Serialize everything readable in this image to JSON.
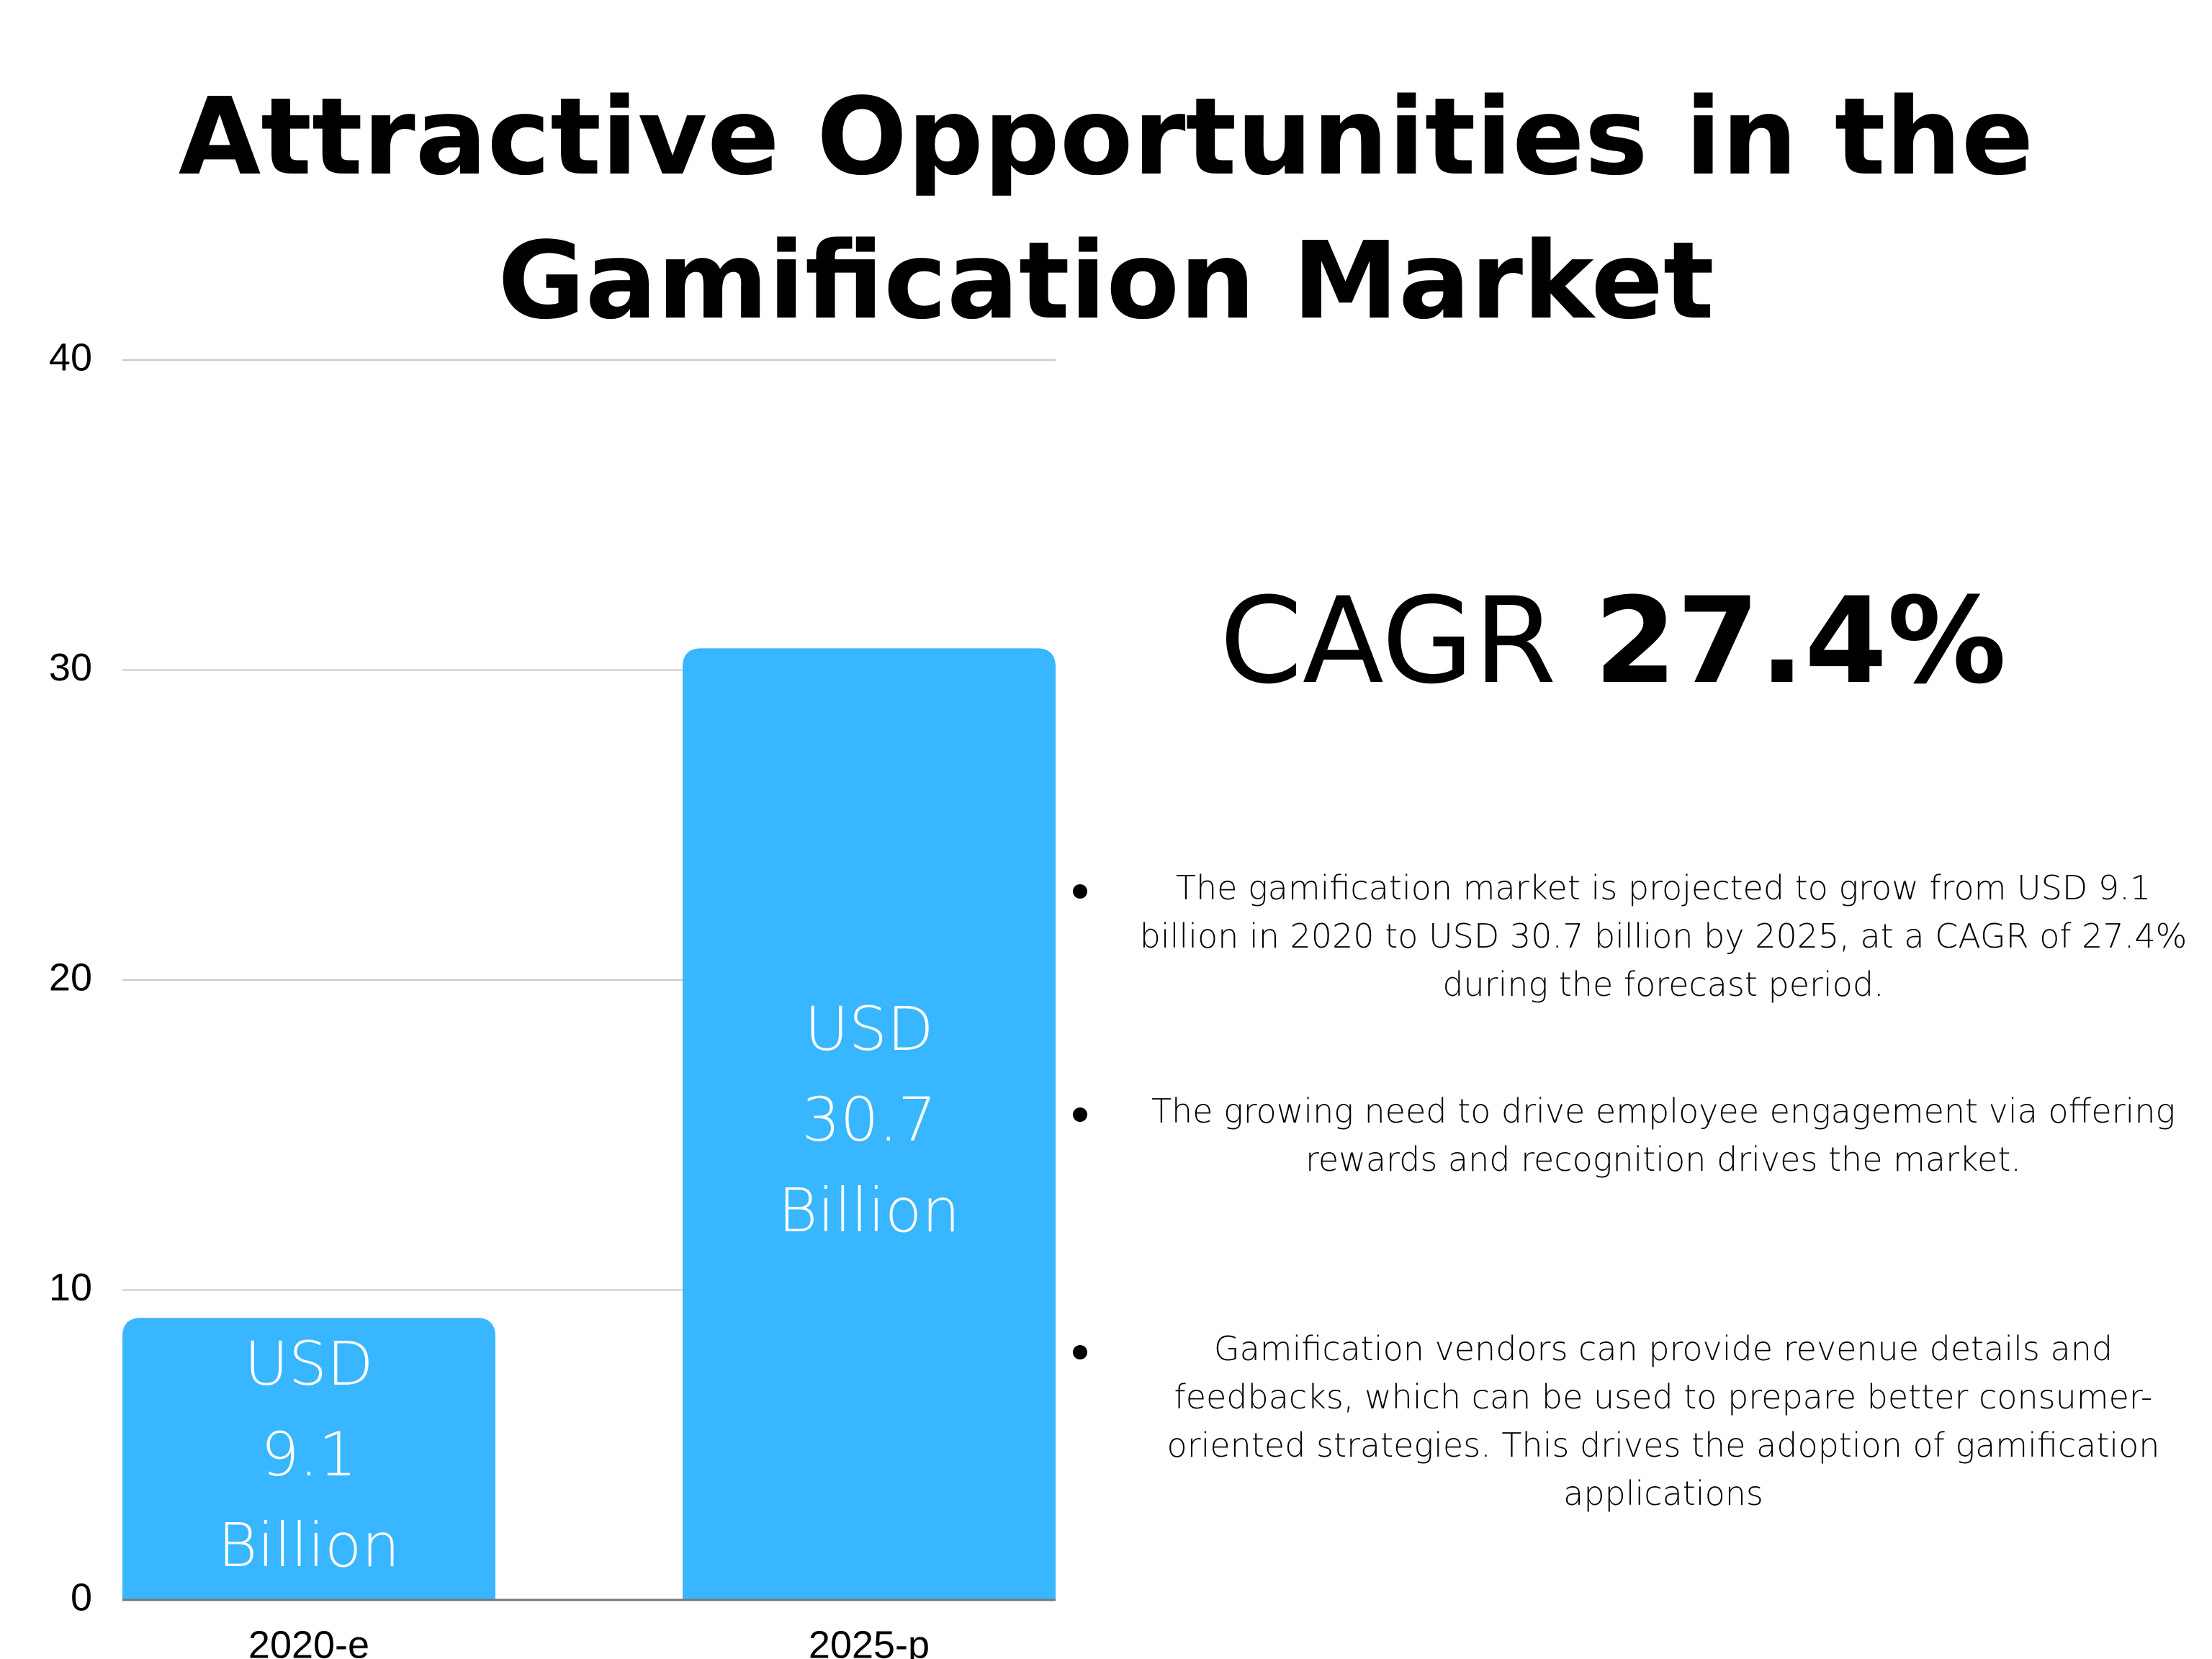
{
  "title": {
    "line1": "Attractive Opportunities in the",
    "line2": "Gamification Market"
  },
  "chart_data": {
    "type": "bar",
    "categories": [
      "2020-e",
      "2025-p"
    ],
    "values": [
      9.1,
      30.7
    ],
    "data_labels": [
      [
        "USD",
        "9.1",
        "Billion"
      ],
      [
        "USD",
        "30.7",
        "Billion"
      ]
    ],
    "yticks": [
      "0",
      "10",
      "20",
      "30",
      "40"
    ],
    "ylim": [
      0,
      40
    ],
    "grid": true,
    "bar_color": "#38b6ff"
  },
  "cagr": {
    "word": "CAGR",
    "value": "27.4%"
  },
  "bullets": [
    "The gamification market is projected to grow from USD 9.1 billion in 2020 to USD 30.7 billion by 2025, at a CAGR of 27.4% during the forecast period.",
    "The growing need to drive employee engagement via offering rewards and recognition drives the market.",
    "Gamification vendors can provide revenue details and feedbacks, which can be used to prepare better consumer-oriented strategies. This drives the adoption of gamification applications"
  ]
}
